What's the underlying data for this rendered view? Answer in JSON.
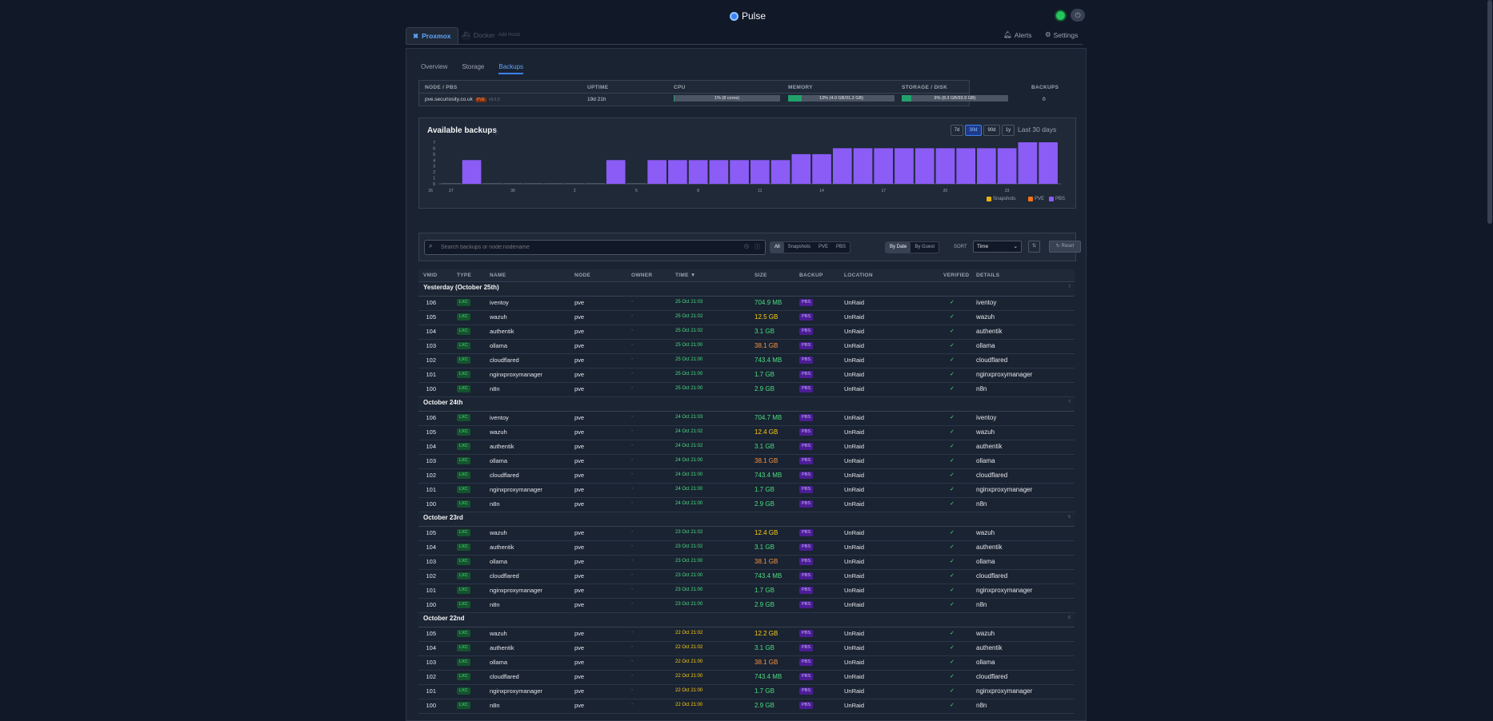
{
  "app": {
    "title": "Pulse"
  },
  "nav": {
    "tabs": [
      {
        "label": "Proxmox"
      },
      {
        "label": "Docker",
        "sub": "Add Hosts"
      }
    ],
    "alerts_label": "Alerts",
    "settings_label": "Settings"
  },
  "subtabs": [
    {
      "label": "Overview"
    },
    {
      "label": "Storage"
    },
    {
      "label": "Backups"
    }
  ],
  "nodes": {
    "headers": {
      "node": "NODE / PBS",
      "uptime": "UPTIME",
      "cpu": "CPU",
      "memory": "MEMORY",
      "storage": "STORAGE / DISK",
      "backups": "BACKUPS"
    },
    "row": {
      "name": "pve.securiosity.co.uk",
      "badge": "PVE",
      "version": "v9.0.3",
      "uptime": "19d 21h",
      "cpu": "1% (8 cores)",
      "cpu_pct": 1,
      "memory": "13% (4.0 GB/31.2 GB)",
      "memory_pct": 13,
      "storage": "9% (8.3 GB/93.9 GB)",
      "storage_pct": 9,
      "backups": "0"
    }
  },
  "chart_section": {
    "title": "Available backups",
    "ranges": [
      "7d",
      "30d",
      "90d",
      "1y"
    ],
    "active_range": "30d",
    "range_label": "Last 30 days",
    "legend": [
      {
        "label": "Snapshots",
        "color": "#eab308"
      },
      {
        "label": "PVE",
        "color": "#f97316"
      },
      {
        "label": "PBS",
        "color": "#8b5cf6"
      }
    ]
  },
  "chart_data": {
    "type": "bar",
    "categories": [
      "27",
      "28",
      "29",
      "30",
      "31",
      "1",
      "2",
      "3",
      "4",
      "5",
      "6",
      "7",
      "8",
      "9",
      "10",
      "11",
      "12",
      "13",
      "14",
      "15",
      "16",
      "17",
      "18",
      "19",
      "20",
      "21",
      "22",
      "23",
      "24",
      "25"
    ],
    "x_tick_labels": [
      "27",
      "30",
      "2",
      "5",
      "8",
      "11",
      "14",
      "17",
      "20",
      "23",
      "26"
    ],
    "series": [
      {
        "name": "PBS",
        "color": "#8b5cf6",
        "values": [
          0,
          4,
          0,
          0,
          0,
          0,
          0,
          0,
          4,
          0,
          4,
          4,
          4,
          4,
          4,
          4,
          4,
          5,
          5,
          6,
          6,
          6,
          6,
          6,
          6,
          6,
          6,
          6,
          7,
          7
        ]
      }
    ],
    "y_ticks": [
      0,
      1,
      2,
      3,
      4,
      5,
      6,
      7
    ],
    "ylim": [
      0,
      7
    ]
  },
  "filters": {
    "search_placeholder": "Search backups or node:nodename",
    "type_options": [
      "All",
      "Snapshots",
      "PVE",
      "PBS"
    ],
    "type_active": "All",
    "group_options": [
      "By Date",
      "By Guest"
    ],
    "group_active": "By Date",
    "sort_label": "SORT",
    "sort_value": "Time",
    "reset_label": "Reset"
  },
  "table": {
    "headers": {
      "vmid": "VMID",
      "type": "TYPE",
      "name": "NAME",
      "node": "NODE",
      "owner": "OWNER",
      "time": "TIME ▼",
      "size": "SIZE",
      "backup": "BACKUP",
      "location": "LOCATION",
      "verified": "VERIFIED",
      "details": "DETAILS"
    },
    "groups": [
      {
        "title": "Yesterday (October 25th)",
        "count": "7",
        "rows": [
          {
            "vmid": "106",
            "type": "LXC",
            "name": "iventoy",
            "node": "pve",
            "owner": "-",
            "time": "25 Oct 21:03",
            "size": "704.9 MB",
            "backup": "PBS",
            "location": "UnRaid",
            "verified": "✓",
            "details": "iventoy"
          },
          {
            "vmid": "105",
            "type": "LXC",
            "name": "wazuh",
            "node": "pve",
            "owner": "-",
            "time": "25 Oct 21:02",
            "size": "12.5 GB",
            "backup": "PBS",
            "location": "UnRaid",
            "verified": "✓",
            "details": "wazuh"
          },
          {
            "vmid": "104",
            "type": "LXC",
            "name": "authentik",
            "node": "pve",
            "owner": "-",
            "time": "25 Oct 21:02",
            "size": "3.1 GB",
            "backup": "PBS",
            "location": "UnRaid",
            "verified": "✓",
            "details": "authentik"
          },
          {
            "vmid": "103",
            "type": "LXC",
            "name": "ollama",
            "node": "pve",
            "owner": "-",
            "time": "25 Oct 21:00",
            "size": "38.1 GB",
            "backup": "PBS",
            "location": "UnRaid",
            "verified": "✓",
            "details": "ollama"
          },
          {
            "vmid": "102",
            "type": "LXC",
            "name": "cloudflared",
            "node": "pve",
            "owner": "-",
            "time": "25 Oct 21:00",
            "size": "743.4 MB",
            "backup": "PBS",
            "location": "UnRaid",
            "verified": "✓",
            "details": "cloudflared"
          },
          {
            "vmid": "101",
            "type": "LXC",
            "name": "nginxproxymanager",
            "node": "pve",
            "owner": "-",
            "time": "25 Oct 21:00",
            "size": "1.7 GB",
            "backup": "PBS",
            "location": "UnRaid",
            "verified": "✓",
            "details": "nginxproxymanager"
          },
          {
            "vmid": "100",
            "type": "LXC",
            "name": "n8n",
            "node": "pve",
            "owner": "-",
            "time": "25 Oct 21:00",
            "size": "2.9 GB",
            "backup": "PBS",
            "location": "UnRaid",
            "verified": "✓",
            "details": "n8n"
          }
        ]
      },
      {
        "title": "October 24th",
        "count": "7",
        "rows": [
          {
            "vmid": "106",
            "type": "LXC",
            "name": "iventoy",
            "node": "pve",
            "owner": "-",
            "time": "24 Oct 21:03",
            "size": "704.7 MB",
            "backup": "PBS",
            "location": "UnRaid",
            "verified": "✓",
            "details": "iventoy"
          },
          {
            "vmid": "105",
            "type": "LXC",
            "name": "wazuh",
            "node": "pve",
            "owner": "-",
            "time": "24 Oct 21:02",
            "size": "12.4 GB",
            "backup": "PBS",
            "location": "UnRaid",
            "verified": "✓",
            "details": "wazuh"
          },
          {
            "vmid": "104",
            "type": "LXC",
            "name": "authentik",
            "node": "pve",
            "owner": "-",
            "time": "24 Oct 21:02",
            "size": "3.1 GB",
            "backup": "PBS",
            "location": "UnRaid",
            "verified": "✓",
            "details": "authentik"
          },
          {
            "vmid": "103",
            "type": "LXC",
            "name": "ollama",
            "node": "pve",
            "owner": "-",
            "time": "24 Oct 21:00",
            "size": "38.1 GB",
            "backup": "PBS",
            "location": "UnRaid",
            "verified": "✓",
            "details": "ollama"
          },
          {
            "vmid": "102",
            "type": "LXC",
            "name": "cloudflared",
            "node": "pve",
            "owner": "-",
            "time": "24 Oct 21:00",
            "size": "743.4 MB",
            "backup": "PBS",
            "location": "UnRaid",
            "verified": "✓",
            "details": "cloudflared"
          },
          {
            "vmid": "101",
            "type": "LXC",
            "name": "nginxproxymanager",
            "node": "pve",
            "owner": "-",
            "time": "24 Oct 21:00",
            "size": "1.7 GB",
            "backup": "PBS",
            "location": "UnRaid",
            "verified": "✓",
            "details": "nginxproxymanager"
          },
          {
            "vmid": "100",
            "type": "LXC",
            "name": "n8n",
            "node": "pve",
            "owner": "-",
            "time": "24 Oct 21:00",
            "size": "2.9 GB",
            "backup": "PBS",
            "location": "UnRaid",
            "verified": "✓",
            "details": "n8n"
          }
        ]
      },
      {
        "title": "October 23rd",
        "count": "6",
        "rows": [
          {
            "vmid": "105",
            "type": "LXC",
            "name": "wazuh",
            "node": "pve",
            "owner": "-",
            "time": "23 Oct 21:02",
            "size": "12.4 GB",
            "backup": "PBS",
            "location": "UnRaid",
            "verified": "✓",
            "details": "wazuh"
          },
          {
            "vmid": "104",
            "type": "LXC",
            "name": "authentik",
            "node": "pve",
            "owner": "-",
            "time": "23 Oct 21:02",
            "size": "3.1 GB",
            "backup": "PBS",
            "location": "UnRaid",
            "verified": "✓",
            "details": "authentik"
          },
          {
            "vmid": "103",
            "type": "LXC",
            "name": "ollama",
            "node": "pve",
            "owner": "-",
            "time": "23 Oct 21:00",
            "size": "38.1 GB",
            "backup": "PBS",
            "location": "UnRaid",
            "verified": "✓",
            "details": "ollama"
          },
          {
            "vmid": "102",
            "type": "LXC",
            "name": "cloudflared",
            "node": "pve",
            "owner": "-",
            "time": "23 Oct 21:00",
            "size": "743.4 MB",
            "backup": "PBS",
            "location": "UnRaid",
            "verified": "✓",
            "details": "cloudflared"
          },
          {
            "vmid": "101",
            "type": "LXC",
            "name": "nginxproxymanager",
            "node": "pve",
            "owner": "-",
            "time": "23 Oct 21:00",
            "size": "1.7 GB",
            "backup": "PBS",
            "location": "UnRaid",
            "verified": "✓",
            "details": "nginxproxymanager"
          },
          {
            "vmid": "100",
            "type": "LXC",
            "name": "n8n",
            "node": "pve",
            "owner": "-",
            "time": "23 Oct 21:00",
            "size": "2.9 GB",
            "backup": "PBS",
            "location": "UnRaid",
            "verified": "✓",
            "details": "n8n"
          }
        ]
      },
      {
        "title": "October 22nd",
        "count": "6",
        "rows": [
          {
            "vmid": "105",
            "type": "LXC",
            "name": "wazuh",
            "node": "pve",
            "owner": "-",
            "time": "22 Oct 21:02",
            "size": "12.2 GB",
            "backup": "PBS",
            "location": "UnRaid",
            "verified": "✓",
            "details": "wazuh"
          },
          {
            "vmid": "104",
            "type": "LXC",
            "name": "authentik",
            "node": "pve",
            "owner": "-",
            "time": "22 Oct 21:02",
            "size": "3.1 GB",
            "backup": "PBS",
            "location": "UnRaid",
            "verified": "✓",
            "details": "authentik"
          },
          {
            "vmid": "103",
            "type": "LXC",
            "name": "ollama",
            "node": "pve",
            "owner": "-",
            "time": "22 Oct 21:00",
            "size": "38.1 GB",
            "backup": "PBS",
            "location": "UnRaid",
            "verified": "✓",
            "details": "ollama"
          },
          {
            "vmid": "102",
            "type": "LXC",
            "name": "cloudflared",
            "node": "pve",
            "owner": "-",
            "time": "22 Oct 21:00",
            "size": "743.4 MB",
            "backup": "PBS",
            "location": "UnRaid",
            "verified": "✓",
            "details": "cloudflared"
          },
          {
            "vmid": "101",
            "type": "LXC",
            "name": "nginxproxymanager",
            "node": "pve",
            "owner": "-",
            "time": "22 Oct 21:00",
            "size": "1.7 GB",
            "backup": "PBS",
            "location": "UnRaid",
            "verified": "✓",
            "details": "nginxproxymanager"
          },
          {
            "vmid": "100",
            "type": "LXC",
            "name": "n8n",
            "node": "pve",
            "owner": "-",
            "time": "22 Oct 21:00",
            "size": "2.9 GB",
            "backup": "PBS",
            "location": "UnRaid",
            "verified": "✓",
            "details": "n8n"
          }
        ]
      }
    ]
  },
  "colors": {
    "accent": "#3b82f6",
    "ok": "#22c55e",
    "size_large": "#fb923c",
    "size_medium": "#facc15",
    "size_small": "#4ade80",
    "time_recent": "#4ade80",
    "time_older": "#facc15"
  }
}
